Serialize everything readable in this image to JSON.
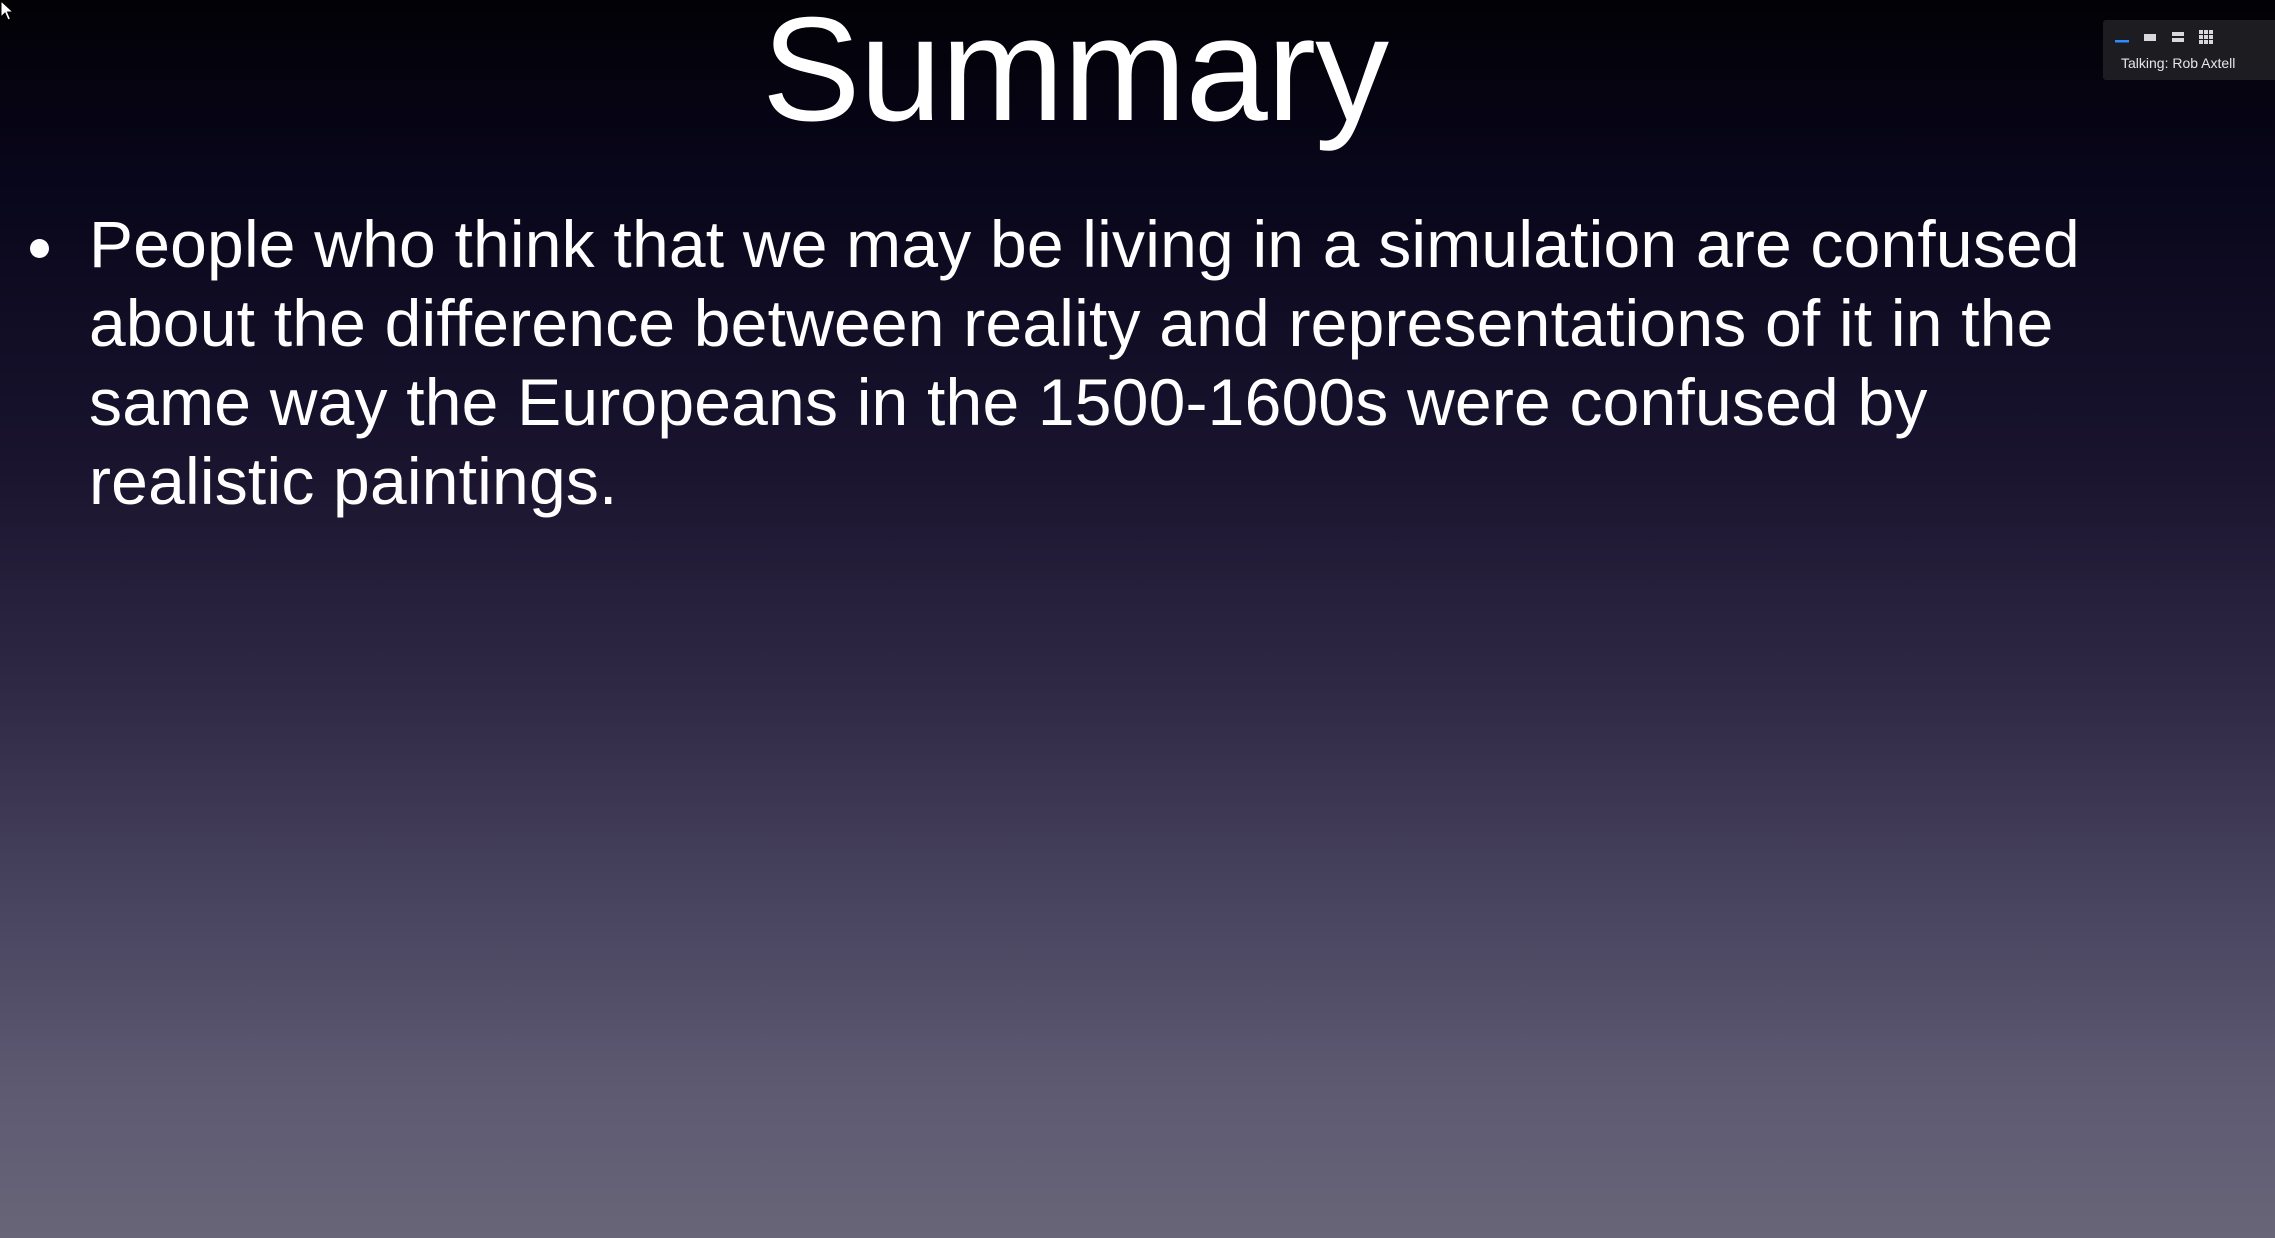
{
  "slide": {
    "title": "Summary",
    "bullets": [
      "People who think that we may be living in a simulation are confused about the difference between reality and representations of it in the same way the Europeans in the 1500-1600s were confused by realistic paintings."
    ]
  },
  "overlay": {
    "view_buttons": [
      {
        "icon": "minimize-view-icon",
        "active": true
      },
      {
        "icon": "speaker-view-icon",
        "active": false
      },
      {
        "icon": "list-view-icon",
        "active": false
      },
      {
        "icon": "gallery-view-icon",
        "active": false
      }
    ],
    "talking_label": "Talking: Rob Axtell"
  },
  "colors": {
    "accent": "#2d8cff",
    "text": "#ffffff"
  }
}
